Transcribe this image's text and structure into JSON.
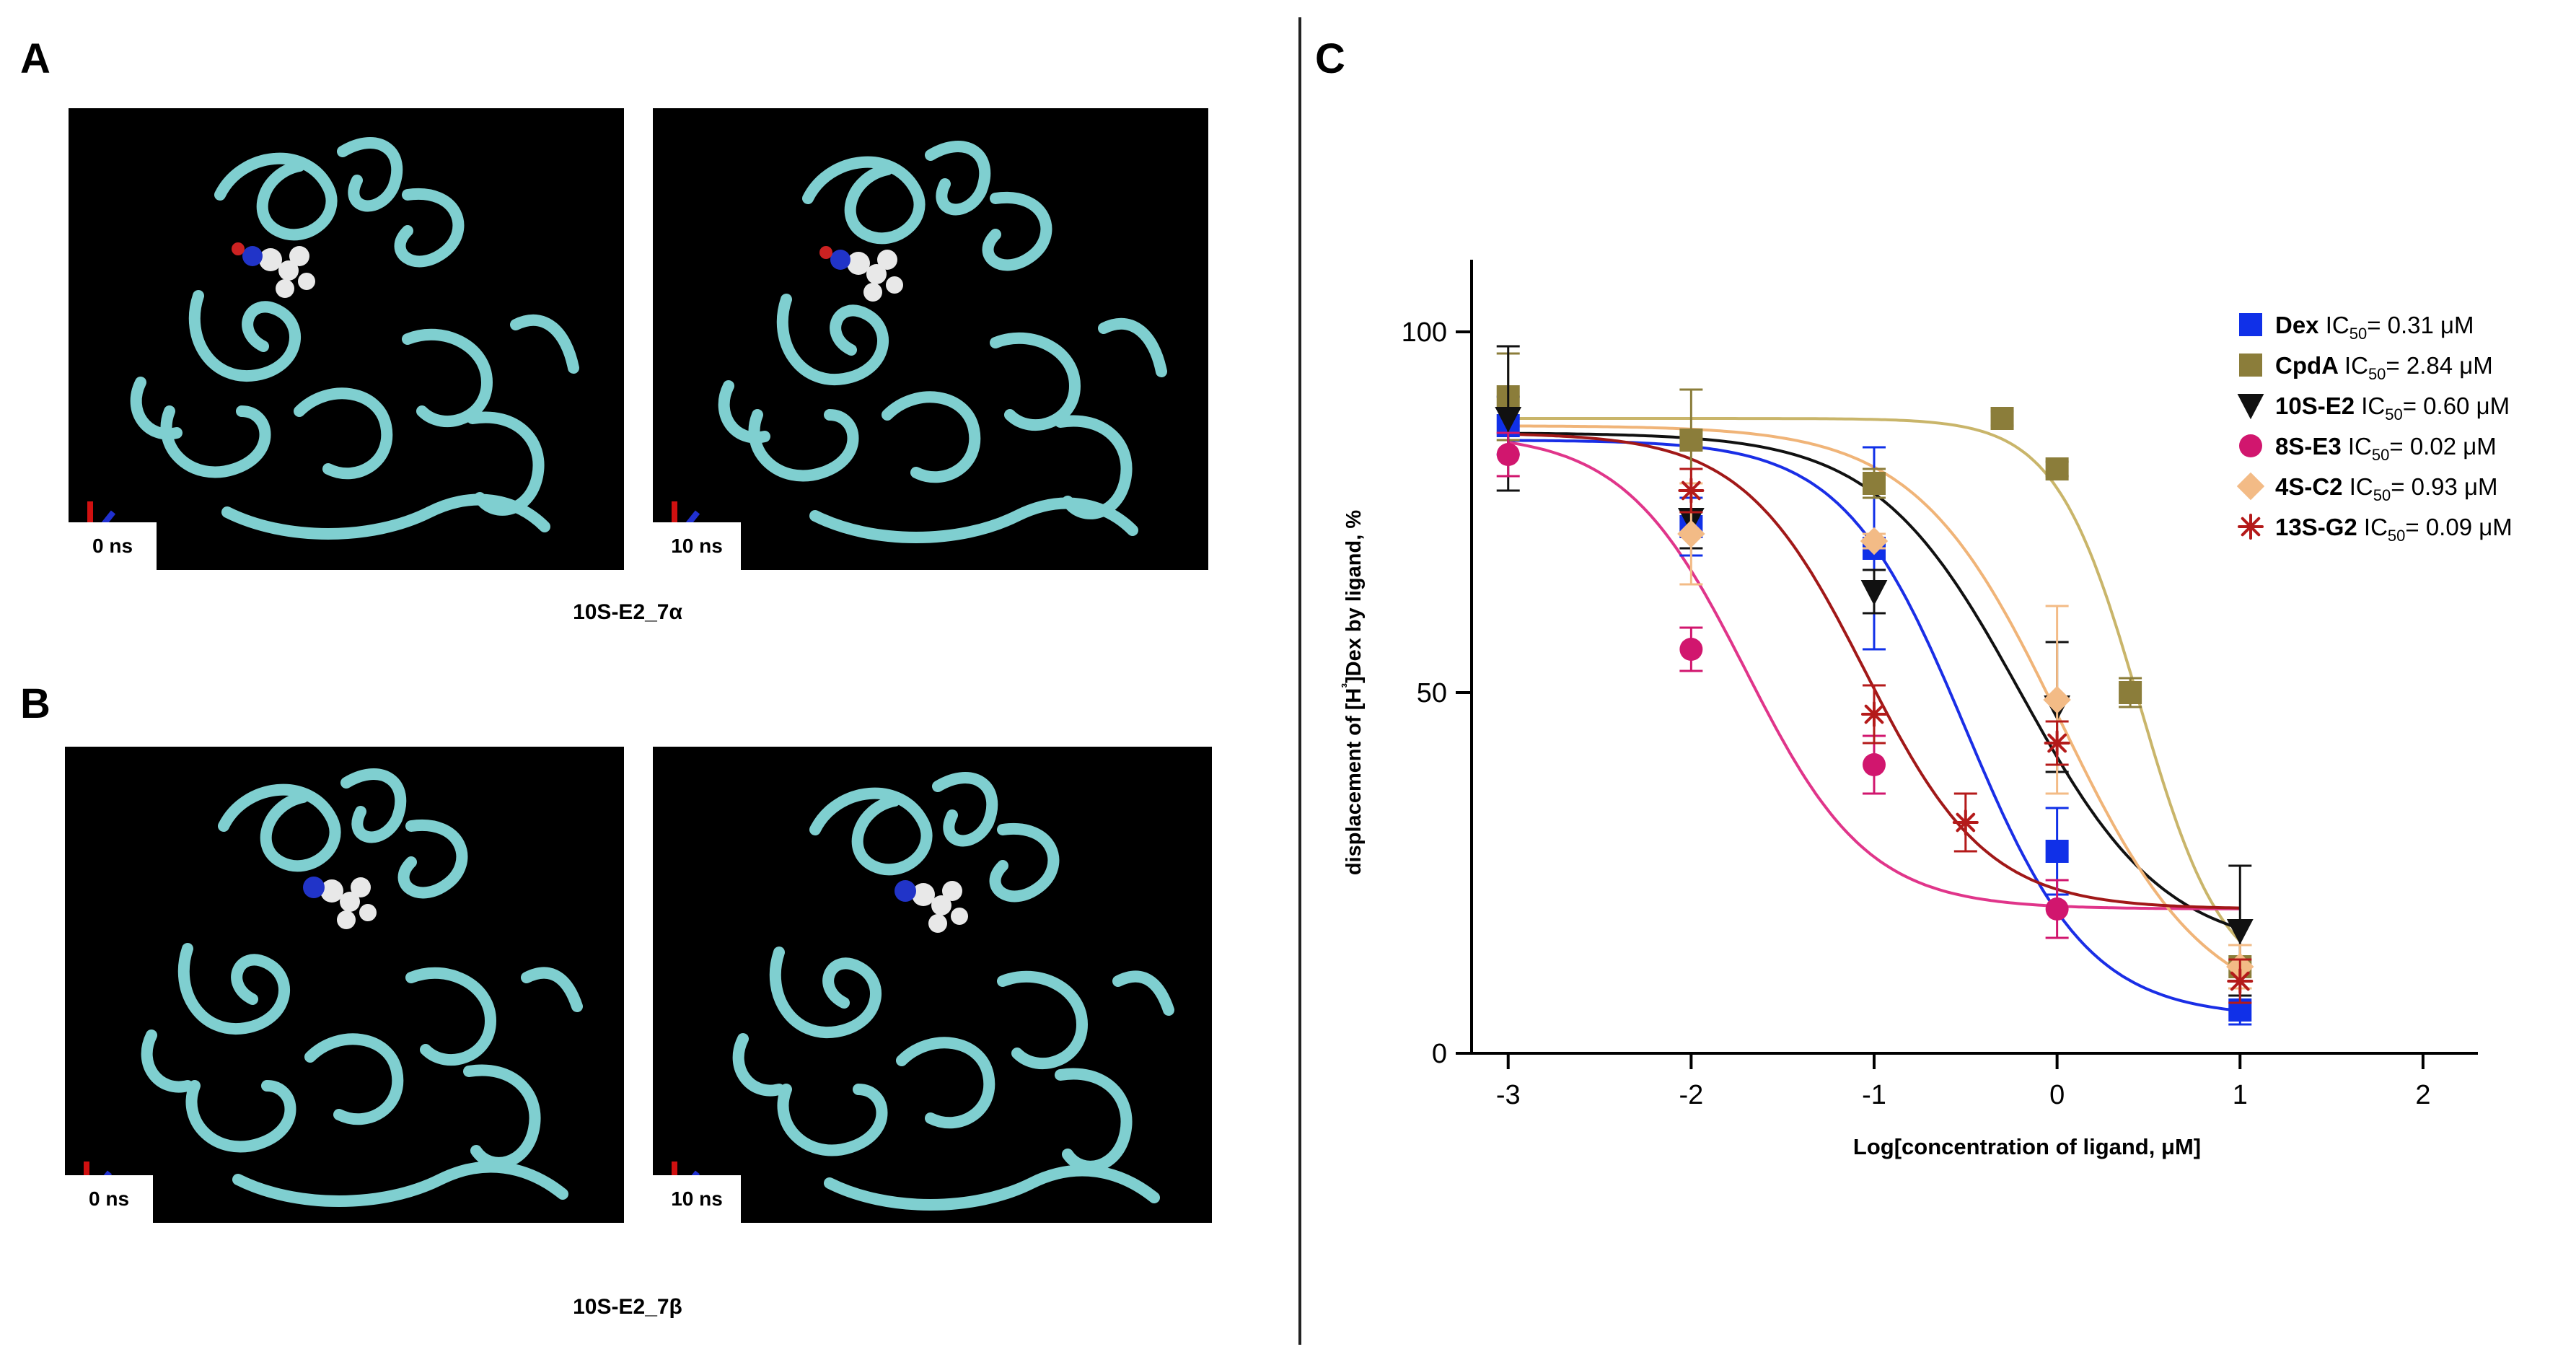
{
  "panels": {
    "a": {
      "letter": "A",
      "caption": "10S-E2_7α",
      "frames": [
        {
          "time": "0 ns"
        },
        {
          "time": "10 ns"
        }
      ]
    },
    "b": {
      "letter": "B",
      "caption": "10S-E2_7β",
      "frames": [
        {
          "time": "0 ns"
        },
        {
          "time": "10 ns"
        }
      ]
    },
    "c": {
      "letter": "C"
    }
  },
  "chart_data": {
    "type": "scatter",
    "xlabel": "Log[concentration of ligand, μM]",
    "ylabel": "displacement of [H³]Dex by ligand, %",
    "xlim": [
      -3.2,
      2.3
    ],
    "ylim": [
      0,
      110
    ],
    "xticks": [
      -3,
      -2,
      -1,
      0,
      1,
      2
    ],
    "yticks": [
      0,
      50,
      100
    ],
    "grid": false,
    "legend_position": "top-right",
    "series": [
      {
        "name": "Dex",
        "ic50_text": "IC50= 0.31 μM",
        "color": "#1030e8",
        "marker": "square",
        "curve_color": "#1a2ee6",
        "x": [
          -3,
          -2,
          -1,
          0,
          1
        ],
        "y": [
          87,
          73,
          70,
          28,
          6
        ],
        "err": [
          4,
          4,
          14,
          6,
          2
        ],
        "fit": {
          "top": 85,
          "bottom": 5,
          "log_ic50": -0.5,
          "hill": 1.3
        }
      },
      {
        "name": "CpdA",
        "ic50_text": "IC50= 2.84 μM",
        "color": "#8b7d3a",
        "marker": "square",
        "curve_color": "#c9b56a",
        "x": [
          -3,
          -2,
          -1,
          -0.3,
          0,
          0.4,
          1
        ],
        "y": [
          91,
          85,
          79,
          88,
          81,
          50,
          12
        ],
        "err": [
          6,
          7,
          2,
          1,
          1,
          2,
          3
        ],
        "fit": {
          "top": 88,
          "bottom": 9,
          "log_ic50": 0.45,
          "hill": 1.9
        }
      },
      {
        "name": "10S-E2",
        "ic50_text": "IC50= 0.60 μM",
        "color": "#111111",
        "marker": "triangle-down",
        "curve_color": "#111111",
        "x": [
          -3,
          -2,
          -1,
          0,
          1
        ],
        "y": [
          88,
          74,
          64,
          48,
          17
        ],
        "err": [
          10,
          4,
          3,
          9,
          9
        ],
        "fit": {
          "top": 86,
          "bottom": 14,
          "log_ic50": -0.2,
          "hill": 1.1
        }
      },
      {
        "name": "8S-E3",
        "ic50_text": "IC50= 0.02 μM",
        "color": "#d1166e",
        "marker": "circle",
        "curve_color": "#e0358a",
        "x": [
          -3,
          -2,
          -1,
          0
        ],
        "y": [
          83,
          56,
          40,
          20
        ],
        "err": [
          3,
          3,
          4,
          4
        ],
        "fit": {
          "top": 86,
          "bottom": 20,
          "log_ic50": -1.7,
          "hill": 1.3
        }
      },
      {
        "name": "4S-C2",
        "ic50_text": "IC50= 0.93 μM",
        "color": "#f3bb86",
        "marker": "diamond",
        "curve_color": "#f0b478",
        "x": [
          -2,
          -1,
          0,
          1
        ],
        "y": [
          72,
          71,
          49,
          12
        ],
        "err": [
          7,
          1,
          13,
          3
        ],
        "fit": {
          "top": 87,
          "bottom": 5,
          "log_ic50": 0.02,
          "hill": 1.1
        }
      },
      {
        "name": "13S-G2",
        "ic50_text": "IC50= 0.09 μM",
        "color": "#b41a1a",
        "marker": "asterisk",
        "curve_color": "#a11818",
        "x": [
          -2,
          -1,
          -0.5,
          0,
          1
        ],
        "y": [
          78,
          47,
          32,
          43,
          10
        ],
        "err": [
          3,
          4,
          4,
          3,
          3
        ],
        "fit": {
          "top": 86,
          "bottom": 20,
          "log_ic50": -1.05,
          "hill": 1.3
        }
      }
    ]
  }
}
